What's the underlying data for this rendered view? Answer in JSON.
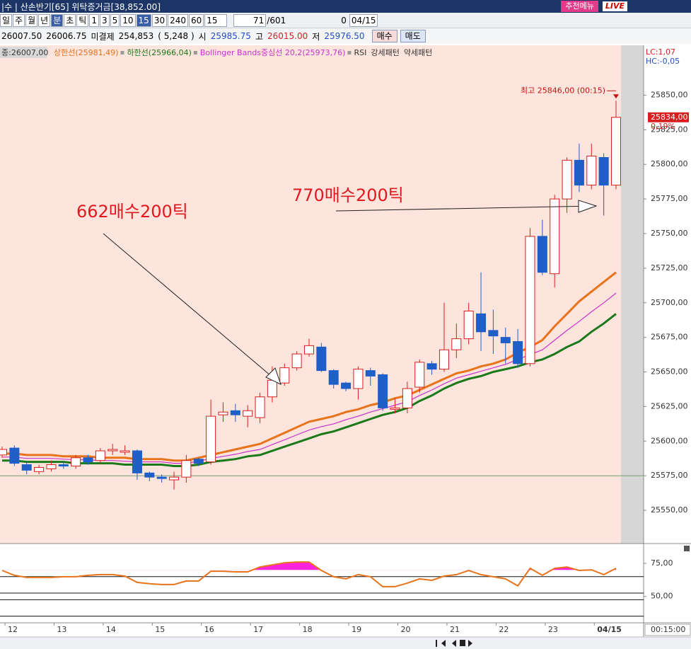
{
  "toolbar": {
    "title": "|수 | 산손반기[65] 위탁증거금[38,852.00]",
    "menu": "추천메뉴",
    "live": "LIVE",
    "periods": [
      "일",
      "주",
      "월",
      "년",
      "분",
      "초",
      "틱",
      "1",
      "3",
      "5",
      "10",
      "15",
      "30",
      "240",
      "60"
    ],
    "interval": "15",
    "count": "71",
    "total": "/601",
    "checkbox": "0",
    "date": "04/15",
    "quote": [
      "26007.50",
      "26006.75",
      "미결제",
      "254,853",
      "( 5,248 )",
      "시",
      "25985.75",
      "고",
      "26015.00",
      "저",
      "25976.50"
    ],
    "buy": "매수",
    "sell": "매도"
  },
  "legend": {
    "close": "종:26007,00",
    "rsi": "RSI",
    "strong": "강세패턴",
    "weak": "약세패턴"
  },
  "time_label": "00:15:00",
  "chart_data": [
    {
      "type": "candlestick",
      "categories": [
        "12",
        null,
        null,
        null,
        "13",
        null,
        null,
        null,
        "14",
        null,
        null,
        null,
        "15",
        null,
        null,
        null,
        "16",
        null,
        null,
        null,
        "17",
        null,
        null,
        null,
        "18",
        null,
        null,
        null,
        "19",
        null,
        null,
        null,
        "20",
        null,
        null,
        null,
        "21",
        null,
        null,
        null,
        "22",
        null,
        null,
        null,
        "23",
        null,
        null,
        null,
        "04/15",
        null,
        null
      ],
      "open": [
        25590,
        25595,
        25583,
        25578,
        25580,
        25583,
        25582,
        25588,
        25586,
        25593,
        25592,
        25593,
        25577,
        25574,
        25572,
        25574,
        25587,
        25585,
        25619,
        25622,
        25618,
        25617,
        25632,
        25642,
        25653,
        25663,
        25668,
        25651,
        25642,
        25638,
        25651,
        25648,
        25623,
        25624,
        25639,
        25656,
        25652,
        25666,
        25674,
        25692,
        25680,
        25675,
        25672,
        25656,
        25748,
        25721,
        25775,
        25803,
        25785,
        25805,
        25785
      ],
      "high": [
        25596,
        25597,
        25585,
        25583,
        25586,
        25585,
        25590,
        25590,
        25595,
        25598,
        25597,
        25594,
        25578,
        25576,
        25578,
        25590,
        25588,
        25630,
        25628,
        25627,
        25626,
        25635,
        25654,
        25656,
        25665,
        25674,
        25671,
        25652,
        25643,
        25654,
        25653,
        25649,
        25631,
        25643,
        25659,
        25658,
        25700,
        25685,
        25700,
        25722,
        25695,
        25682,
        25681,
        25754,
        25760,
        25778,
        25805,
        25815,
        25815,
        25808,
        25846
      ],
      "low": [
        25588,
        25582,
        25576,
        25576,
        25578,
        25580,
        25580,
        25583,
        25584,
        25590,
        25590,
        25572,
        25571,
        25570,
        25565,
        25570,
        25582,
        25583,
        25614,
        25614,
        25610,
        25613,
        25628,
        25640,
        25651,
        25661,
        25650,
        25638,
        25636,
        25630,
        25640,
        25622,
        25620,
        25620,
        25635,
        25648,
        25650,
        25660,
        25670,
        25665,
        25663,
        25656,
        25653,
        25654,
        25720,
        25711,
        25765,
        25780,
        25782,
        25763,
        25782
      ],
      "close": [
        25594,
        25584,
        25579,
        25581,
        25583,
        25582,
        25588,
        25585,
        25593,
        25594,
        25593,
        25577,
        25574,
        25573,
        25574,
        25586,
        25584,
        25618,
        25621,
        25619,
        25622,
        25632,
        25644,
        25653,
        25663,
        25669,
        25651,
        25641,
        25638,
        25652,
        25647,
        25624,
        25624,
        25638,
        25657,
        25652,
        25666,
        25674,
        25694,
        25679,
        25676,
        25671,
        25656,
        25748,
        25722,
        25775,
        25803,
        25785,
        25806,
        25785,
        25834
      ],
      "up_color": "#d81f1f",
      "down_color": "#1f5fc8",
      "series": [
        {
          "name": "상한선(25981,49)",
          "color": "#e8731a",
          "values": [
            25591,
            25591,
            25590,
            25590,
            25590,
            25589,
            25589,
            25589,
            25588,
            25588,
            25588,
            25587,
            25587,
            25587,
            25586,
            25586,
            25588,
            25590,
            25592,
            25594,
            25596,
            25598,
            25602,
            25606,
            25610,
            25614,
            25616,
            25618,
            25621,
            25623,
            25626,
            25628,
            25631,
            25633,
            25637,
            25641,
            25645,
            25649,
            25651,
            25654,
            25656,
            25659,
            25664,
            25668,
            25673,
            25683,
            25692,
            25701,
            25708,
            25715,
            25722
          ]
        },
        {
          "name": "하한선(25966,04)",
          "color": "#1a7a1a",
          "values": [
            25586,
            25586,
            25585,
            25585,
            25585,
            25585,
            25584,
            25584,
            25584,
            25584,
            25583,
            25583,
            25583,
            25583,
            25582,
            25582,
            25583,
            25585,
            25586,
            25587,
            25589,
            25590,
            25593,
            25596,
            25599,
            25602,
            25605,
            25607,
            25610,
            25613,
            25616,
            25619,
            25621,
            25624,
            25629,
            25633,
            25638,
            25642,
            25645,
            25647,
            25650,
            25652,
            25654,
            25657,
            25659,
            25663,
            25668,
            25672,
            25679,
            25685,
            25692
          ]
        },
        {
          "name": "Bollinger Bands중심선 20,2(25973,76)",
          "color": "#cc33cc",
          "values": [
            25588.5,
            25588.5,
            25587.5,
            25587.5,
            25587.5,
            25587,
            25586.5,
            25586.5,
            25586,
            25586,
            25585.5,
            25585,
            25585,
            25585,
            25584,
            25584,
            25585.5,
            25587.5,
            25589,
            25590.5,
            25592.5,
            25594,
            25597.5,
            25601,
            25604.5,
            25608,
            25610.5,
            25612.5,
            25615.5,
            25618,
            25621,
            25623.5,
            25626,
            25628.5,
            25633,
            25637,
            25641.5,
            25645.5,
            25648,
            25650.5,
            25653,
            25655.5,
            25659,
            25662.5,
            25666,
            25673,
            25680,
            25686.5,
            25693.5,
            25700,
            25707
          ]
        }
      ],
      "reference_line": 25575,
      "ylim": [
        25526,
        25884
      ],
      "yticks": [
        {
          "value": 25550,
          "label": "25550,00"
        },
        {
          "value": 25575,
          "label": "25575,00"
        },
        {
          "value": 25600,
          "label": "25600,00"
        },
        {
          "value": 25625,
          "label": "25625,00"
        },
        {
          "value": 25650,
          "label": "25650,00"
        },
        {
          "value": 25675,
          "label": "25675,00"
        },
        {
          "value": 25700,
          "label": "25700,00"
        },
        {
          "value": 25725,
          "label": "25725,00"
        },
        {
          "value": 25750,
          "label": "25750,00"
        },
        {
          "value": 25775,
          "label": "25775,00"
        },
        {
          "value": 25800,
          "label": "25800,00"
        },
        {
          "value": 25825,
          "label": "25825,00"
        },
        {
          "value": 25850,
          "label": "25850,00"
        }
      ],
      "last_price": {
        "value": 25834,
        "label": "25834,00"
      },
      "change_label": "0,19%",
      "high_annotation": "최고 25846,00 (00:15)",
      "annotations": [
        "662매수200틱",
        "770매수200틱"
      ],
      "lc": "LC:1,07",
      "hc": "HC:-0,05"
    },
    {
      "type": "line",
      "series": [
        {
          "color": "#e8731a",
          "values": [
            69.7,
            66,
            64.4,
            64.4,
            64.4,
            64.9,
            64.9,
            66,
            66.5,
            66.5,
            65.4,
            60.6,
            59.6,
            59,
            59,
            61.7,
            61.7,
            69.1,
            69.1,
            68.6,
            68.6,
            72.3,
            73.9,
            75.5,
            76.1,
            76.1,
            69.7,
            64.9,
            63.3,
            66.5,
            64.9,
            57.4,
            57.4,
            60.1,
            63.3,
            62.2,
            65.4,
            66.5,
            69.7,
            66.5,
            64.9,
            63.3,
            58,
            71.3,
            66,
            71.3,
            72.3,
            69.7,
            70.2,
            66.5,
            71.3
          ]
        }
      ],
      "fill_above": 70,
      "fill_color": "#ff22dd",
      "hlines": [
        65,
        52.5,
        47.5,
        35
      ],
      "ylim": [
        30,
        89
      ],
      "yticks": [
        {
          "value": 75,
          "label": "75,00"
        },
        {
          "value": 50,
          "label": "50,00"
        }
      ]
    }
  ]
}
